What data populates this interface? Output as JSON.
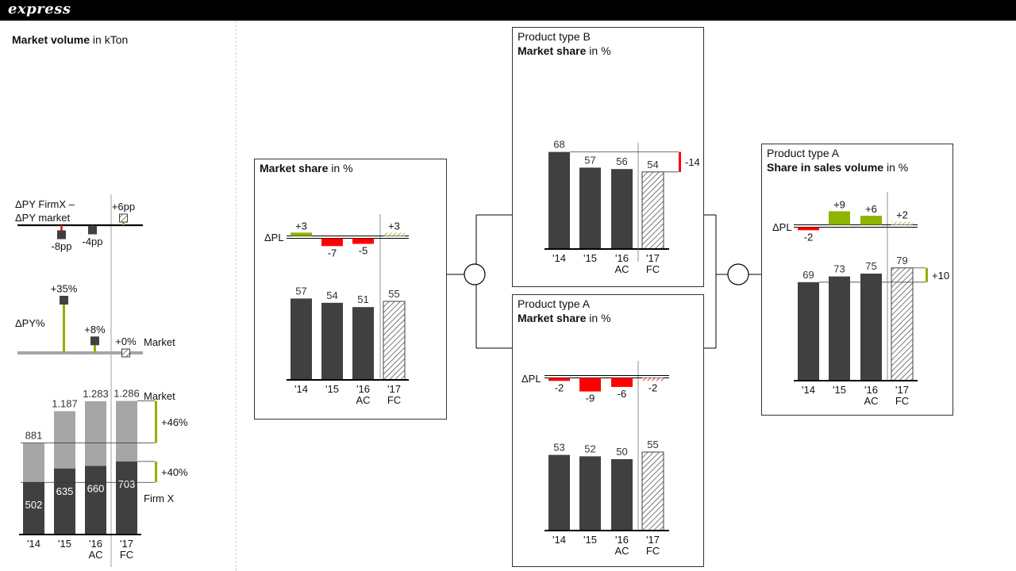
{
  "brand": "express",
  "left": {
    "title_bold": "Market volume",
    "title_rest": " in kTon",
    "dpp_label_1": "ΔPY FirmX –",
    "dpp_label_2": "ΔPY market",
    "dpy_label": "ΔPY%",
    "market_label": "Market",
    "firm_label": "Firm X",
    "market_diff": "+46%",
    "firm_diff": "+40%"
  },
  "panels": {
    "ms": {
      "title_bold": "Market share",
      "title_rest": " in %",
      "dpl_label": "ΔPL"
    },
    "b": {
      "line1": "Product type B",
      "title_bold": "Market share",
      "title_rest": " in %",
      "diff": "-14"
    },
    "a": {
      "line1": "Product type A",
      "title_bold": "Market share",
      "title_rest": " in %",
      "dpl_label": "ΔPL"
    },
    "sv": {
      "line1": "Product type A",
      "title_bold": "Share in sales volume",
      "title_rest": " in %",
      "dpl_label": "ΔPL",
      "diff": "+10"
    }
  },
  "colors": {
    "actual": "#404040",
    "market_bar": "#a6a6a6",
    "positive": "#8cb400",
    "negative": "#ff0000",
    "axis": "#000000"
  },
  "chart_data": [
    {
      "id": "left-dpp",
      "type": "bar",
      "categories": [
        "'14",
        "'15",
        "'16",
        "'17"
      ],
      "series": [
        {
          "name": "ΔPY FirmX – ΔPY market",
          "values": [
            null,
            -8,
            -4,
            6
          ]
        }
      ],
      "value_labels": [
        "",
        "-8pp",
        "-4pp",
        "+6pp"
      ],
      "scenario": [
        "AC",
        "AC",
        "AC",
        "FC"
      ]
    },
    {
      "id": "left-dpy",
      "type": "bar",
      "categories": [
        "'14",
        "'15",
        "'16",
        "'17"
      ],
      "series": [
        {
          "name": "Market",
          "values": [
            null,
            35,
            8,
            0
          ]
        }
      ],
      "value_labels": [
        "",
        "+35%",
        "+8%",
        "+0%"
      ],
      "scenario": [
        "AC",
        "AC",
        "AC",
        "FC"
      ]
    },
    {
      "id": "left-volume",
      "type": "bar",
      "categories": [
        "'14",
        "'15",
        "'16",
        "'17"
      ],
      "category_sub": [
        "",
        "",
        "AC",
        "FC"
      ],
      "series": [
        {
          "name": "Market",
          "values": [
            881,
            1187,
            1283,
            1286
          ],
          "labels": [
            "881",
            "1.187",
            "1.283",
            "1.286"
          ]
        },
        {
          "name": "Firm X",
          "values": [
            502,
            635,
            660,
            703
          ],
          "labels": [
            "502",
            "635",
            "660",
            "703"
          ]
        }
      ],
      "differences": [
        "+46%",
        "+40%"
      ]
    },
    {
      "id": "market-share",
      "type": "bar",
      "categories": [
        "'14",
        "'15",
        "'16",
        "'17"
      ],
      "category_sub": [
        "",
        "",
        "AC",
        "FC"
      ],
      "values": [
        57,
        54,
        51,
        55
      ],
      "delta_pl": [
        3,
        -7,
        -5,
        3
      ],
      "delta_pl_labels": [
        "+3",
        "-7",
        "-5",
        "+3"
      ],
      "scenario": [
        "AC",
        "AC",
        "AC",
        "FC"
      ]
    },
    {
      "id": "product-b-market-share",
      "type": "bar",
      "categories": [
        "'14",
        "'15",
        "'16",
        "'17"
      ],
      "category_sub": [
        "",
        "",
        "AC",
        "FC"
      ],
      "values": [
        68,
        57,
        56,
        54
      ],
      "difference": -14,
      "scenario": [
        "AC",
        "AC",
        "AC",
        "FC"
      ]
    },
    {
      "id": "product-a-market-share",
      "type": "bar",
      "categories": [
        "'14",
        "'15",
        "'16",
        "'17"
      ],
      "category_sub": [
        "",
        "",
        "AC",
        "FC"
      ],
      "values": [
        53,
        52,
        50,
        55
      ],
      "delta_pl": [
        -2,
        -9,
        -6,
        -2
      ],
      "delta_pl_labels": [
        "-2",
        "-9",
        "-6",
        "-2"
      ],
      "scenario": [
        "AC",
        "AC",
        "AC",
        "FC"
      ]
    },
    {
      "id": "product-a-sales-share",
      "type": "bar",
      "categories": [
        "'14",
        "'15",
        "'16",
        "'17"
      ],
      "category_sub": [
        "",
        "",
        "AC",
        "FC"
      ],
      "values": [
        69,
        73,
        75,
        79
      ],
      "delta_pl": [
        -2,
        9,
        6,
        2
      ],
      "delta_pl_labels": [
        "-2",
        "+9",
        "+6",
        "+2"
      ],
      "difference": 10,
      "scenario": [
        "AC",
        "AC",
        "AC",
        "FC"
      ]
    }
  ]
}
